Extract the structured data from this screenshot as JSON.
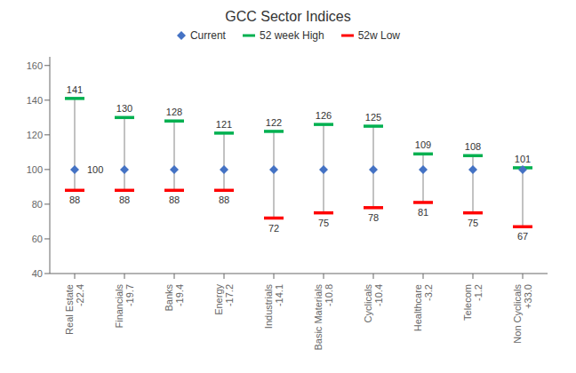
{
  "chart_data": {
    "type": "range",
    "title": "GCC Sector Indices",
    "categories": [
      "Real Estate\n-22.4",
      "Financials\n-19.7",
      "Banks\n-19.4",
      "Energy\n-17.2",
      "Industrials\n-14.1",
      "Basic Materials\n-10.8",
      "Cyclicals\n-10.4",
      "Healthcare\n-3.2",
      "Telecom\n-1.2",
      "Non Cyclicals\n+33.0"
    ],
    "series": [
      {
        "name": "Current",
        "color": "#4472C4",
        "marker": "diamond",
        "values": [
          100,
          100,
          100,
          100,
          100,
          100,
          100,
          100,
          100,
          100
        ],
        "value_labels": [
          "100",
          null,
          null,
          null,
          null,
          null,
          null,
          null,
          null,
          null
        ]
      },
      {
        "name": "52 week High",
        "color": "#00B050",
        "data_labels": true,
        "values": [
          141,
          130,
          128,
          121,
          122,
          126,
          125,
          109,
          108,
          101
        ]
      },
      {
        "name": "52w Low",
        "color": "#FF0000",
        "data_labels": true,
        "values": [
          88,
          88,
          88,
          88,
          72,
          75,
          78,
          81,
          75,
          67
        ]
      }
    ],
    "ylim": [
      40,
      165
    ],
    "yticks": [
      40,
      60,
      80,
      100,
      120,
      140,
      160
    ],
    "grid": false
  }
}
